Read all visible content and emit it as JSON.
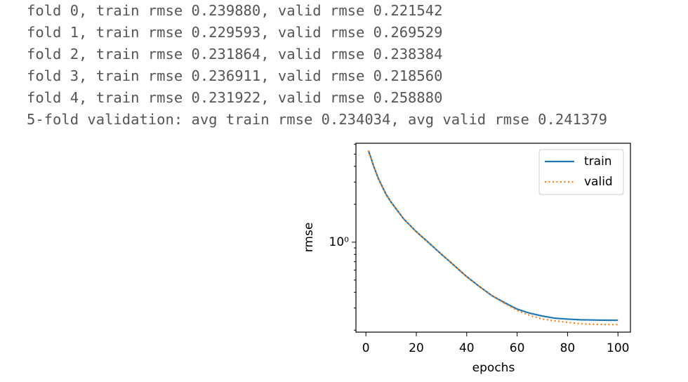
{
  "output": {
    "lines": [
      "fold 0, train rmse 0.239880, valid rmse 0.221542",
      "fold 1, train rmse 0.229593, valid rmse 0.269529",
      "fold 2, train rmse 0.231864, valid rmse 0.238384",
      "fold 3, train rmse 0.236911, valid rmse 0.218560",
      "fold 4, train rmse 0.231922, valid rmse 0.258880",
      "5-fold validation: avg train rmse 0.234034, avg valid rmse 0.241379"
    ]
  },
  "chart_data": {
    "type": "line",
    "xlabel": "epochs",
    "ylabel": "rmse",
    "x": [
      1,
      2,
      3,
      5,
      8,
      10,
      15,
      20,
      25,
      30,
      35,
      40,
      45,
      50,
      55,
      60,
      65,
      70,
      75,
      80,
      85,
      90,
      95,
      100
    ],
    "series": [
      {
        "name": "train",
        "color": "#1f77b4",
        "style": "solid",
        "values": [
          5.33,
          4.68,
          4.06,
          3.18,
          2.4,
          2.08,
          1.53,
          1.21,
          0.987,
          0.8,
          0.654,
          0.532,
          0.445,
          0.376,
          0.331,
          0.294,
          0.273,
          0.259,
          0.249,
          0.245,
          0.242,
          0.241,
          0.24,
          0.2399
        ]
      },
      {
        "name": "valid",
        "color": "#ff7f0e",
        "style": "dotted",
        "values": [
          5.33,
          4.68,
          4.06,
          3.18,
          2.4,
          2.08,
          1.53,
          1.21,
          0.987,
          0.8,
          0.654,
          0.532,
          0.445,
          0.376,
          0.327,
          0.287,
          0.262,
          0.245,
          0.237,
          0.231,
          0.225,
          0.223,
          0.222,
          0.2215
        ]
      }
    ],
    "xlim": [
      -3.95,
      104.95
    ],
    "xticks": [
      0,
      20,
      40,
      60,
      80,
      100
    ],
    "ylim": [
      0.193,
      6.1
    ],
    "yscale": "log",
    "yticks": [
      {
        "value": 1,
        "label": "10⁰"
      }
    ],
    "yminorticks": [
      0.2,
      0.3,
      0.4,
      0.5,
      0.6,
      0.7,
      0.8,
      0.9,
      2,
      3,
      4,
      5,
      6
    ],
    "legend": "upper right"
  }
}
